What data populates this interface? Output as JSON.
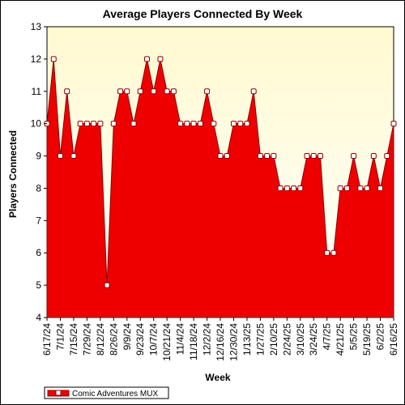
{
  "chart_data": {
    "type": "area",
    "title": "Average Players Connected By Week",
    "xlabel": "Week",
    "ylabel": "Players Connected",
    "ylim": [
      4,
      13
    ],
    "yticks": [
      "4",
      "5",
      "6",
      "7",
      "8",
      "9",
      "10",
      "11",
      "12",
      "13"
    ],
    "grid": false,
    "legend_position": "bottom-left",
    "colors": {
      "fill": "#ee0000",
      "line": "#8b0000",
      "plot_bg_top": "#fffad0",
      "plot_bg_bottom": "#ffffff",
      "marker_fill": "#ffffff"
    },
    "x": [
      "6/17/24",
      "6/24/24",
      "7/1/24",
      "7/8/24",
      "7/15/24",
      "7/22/24",
      "7/29/24",
      "8/5/24",
      "8/12/24",
      "8/19/24",
      "8/26/24",
      "9/2/24",
      "9/9/24",
      "9/16/24",
      "9/23/24",
      "9/30/24",
      "10/7/24",
      "10/14/24",
      "10/21/24",
      "10/28/24",
      "11/4/24",
      "11/11/24",
      "11/18/24",
      "11/25/24",
      "12/2/24",
      "12/9/24",
      "12/16/24",
      "12/23/24",
      "12/30/24",
      "1/6/25",
      "1/13/25",
      "1/20/25",
      "1/27/25",
      "2/3/25",
      "2/10/25",
      "2/17/25",
      "2/24/25",
      "3/3/25",
      "3/10/25",
      "3/17/25",
      "3/24/25",
      "3/31/25",
      "4/7/25",
      "4/14/25",
      "4/21/25",
      "4/28/25",
      "5/5/25",
      "5/12/25",
      "5/19/25",
      "5/26/25",
      "6/2/25",
      "6/9/25",
      "6/16/25"
    ],
    "x_tick_labels": [
      "6/17/24",
      "7/1/24",
      "7/15/24",
      "7/29/24",
      "8/12/24",
      "8/26/24",
      "9/9/24",
      "9/23/24",
      "10/7/24",
      "10/21/24",
      "11/4/24",
      "11/18/24",
      "12/2/24",
      "12/16/24",
      "12/30/24",
      "1/13/25",
      "1/27/25",
      "2/10/25",
      "2/24/25",
      "3/10/25",
      "3/24/25",
      "4/7/25",
      "4/21/25",
      "5/5/25",
      "5/19/25",
      "6/2/25",
      "6/16/25"
    ],
    "series": [
      {
        "name": "Comic Adventures MUX",
        "values": [
          10,
          12,
          9,
          11,
          9,
          10,
          10,
          10,
          10,
          5,
          10,
          11,
          11,
          10,
          11,
          12,
          11,
          12,
          11,
          11,
          10,
          10,
          10,
          10,
          11,
          10,
          9,
          9,
          10,
          10,
          10,
          11,
          9,
          9,
          9,
          8,
          8,
          8,
          8,
          9,
          9,
          9,
          6,
          6,
          8,
          8,
          9,
          8,
          8,
          9,
          8,
          9,
          10
        ]
      }
    ]
  }
}
